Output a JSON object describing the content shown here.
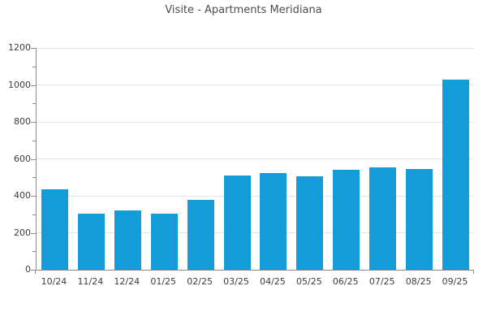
{
  "chart_data": {
    "type": "bar",
    "title": "Visite - Apartments Meridiana",
    "categories": [
      "10/24",
      "11/24",
      "12/24",
      "01/25",
      "02/25",
      "03/25",
      "04/25",
      "05/25",
      "06/25",
      "07/25",
      "08/25",
      "09/25"
    ],
    "values": [
      435,
      305,
      320,
      305,
      380,
      510,
      525,
      505,
      540,
      555,
      545,
      1030
    ],
    "xlabel": "",
    "ylabel": "",
    "ylim": [
      0,
      1200
    ],
    "yticks": [
      0,
      200,
      400,
      600,
      800,
      1000,
      1200
    ],
    "ytick_labels": [
      "0",
      "200",
      "400",
      "600",
      "800",
      "1000",
      "1200"
    ],
    "minor_yticks": [
      100,
      300,
      500,
      700,
      900,
      1100
    ],
    "grid": "horizontal-major",
    "legend": "none",
    "colors": {
      "bar": "#149cd8",
      "grid": "#e5e5e5",
      "axis": "#8c8c8c",
      "tick": "#8c8c8c",
      "text": "#3c3c3c",
      "title": "#4d4d4d",
      "background": "#ffffff"
    }
  }
}
